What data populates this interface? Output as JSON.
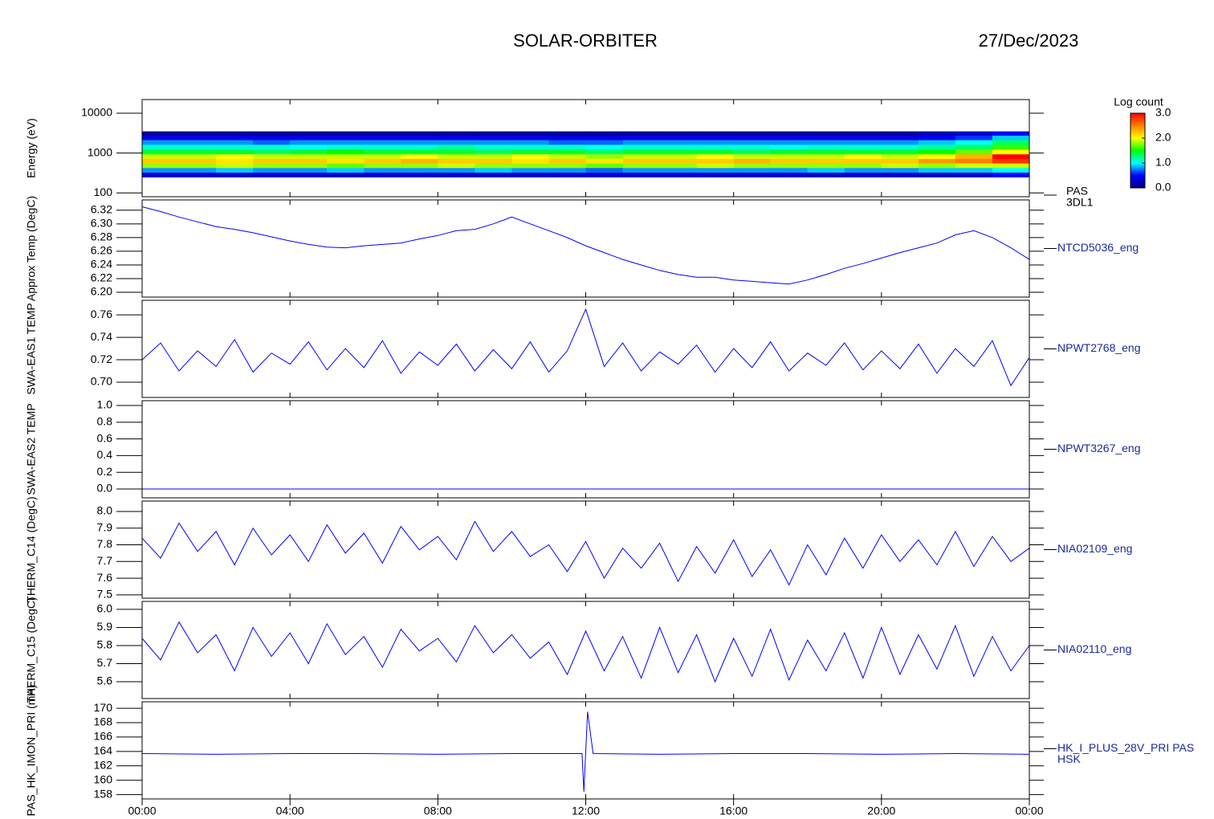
{
  "title": "SOLAR-ORBITER",
  "date": "27/Dec/2023",
  "chart_data": [
    {
      "type": "heatmap",
      "labels": [
        "PAS",
        "3DL1"
      ],
      "ylabel": "Energy (eV)",
      "ylog": true,
      "xlim": [
        0,
        24
      ],
      "ylim": [
        80,
        22000
      ],
      "yticks": [
        100,
        1000,
        10000
      ],
      "x_edges": [
        0,
        1,
        2,
        3,
        4,
        5,
        6,
        7,
        8,
        9,
        10,
        11,
        12,
        13,
        14,
        15,
        16,
        17,
        18,
        19,
        20,
        21,
        22,
        23,
        24
      ],
      "y_edges": [
        250,
        330,
        430,
        560,
        730,
        950,
        1250,
        1650,
        2150,
        2800,
        3500
      ],
      "z": [
        [
          0.3,
          0.3,
          0.3,
          0.3,
          0.3,
          0.3,
          0.3,
          0.3,
          0.3,
          0.3,
          0.3,
          0.3,
          0.3,
          0.3,
          0.3,
          0.3,
          0.3,
          0.3,
          0.3,
          0.3,
          0.3,
          0.3,
          0.3,
          0.5
        ],
        [
          0.8,
          0.8,
          0.9,
          0.8,
          0.8,
          0.9,
          0.8,
          0.8,
          0.8,
          0.9,
          0.8,
          0.8,
          0.7,
          0.8,
          0.8,
          0.8,
          0.8,
          0.8,
          0.9,
          0.8,
          0.8,
          0.9,
          0.9,
          1.0
        ],
        [
          1.8,
          1.8,
          1.9,
          1.8,
          1.8,
          1.7,
          1.8,
          1.8,
          1.9,
          1.8,
          1.8,
          1.8,
          1.7,
          1.8,
          1.8,
          1.9,
          1.8,
          1.8,
          1.8,
          1.8,
          1.9,
          1.8,
          1.9,
          1.9
        ],
        [
          2.2,
          2.2,
          2.1,
          2.2,
          2.2,
          2.1,
          2.2,
          2.3,
          2.2,
          2.2,
          2.1,
          2.2,
          2.1,
          2.2,
          2.2,
          2.2,
          2.3,
          2.2,
          2.2,
          2.2,
          2.2,
          2.4,
          2.5,
          2.8
        ],
        [
          1.9,
          1.9,
          2.0,
          1.9,
          1.9,
          1.9,
          1.9,
          2.0,
          1.9,
          1.9,
          2.0,
          1.9,
          1.8,
          1.9,
          1.9,
          2.0,
          1.9,
          1.9,
          1.9,
          2.0,
          1.9,
          2.0,
          2.3,
          3.0
        ],
        [
          1.4,
          1.4,
          1.4,
          1.3,
          1.4,
          1.5,
          1.4,
          1.4,
          1.4,
          1.3,
          1.4,
          1.4,
          1.3,
          1.4,
          1.4,
          1.4,
          1.3,
          1.4,
          1.4,
          1.4,
          1.4,
          1.5,
          1.7,
          2.0
        ],
        [
          1.1,
          1.1,
          1.1,
          1.1,
          1.0,
          1.1,
          1.1,
          1.1,
          1.2,
          1.1,
          1.1,
          1.1,
          1.0,
          1.1,
          1.1,
          1.1,
          1.1,
          1.0,
          1.1,
          1.1,
          1.1,
          1.2,
          1.3,
          1.6
        ],
        [
          0.8,
          0.8,
          0.8,
          0.7,
          0.8,
          0.8,
          0.8,
          0.8,
          0.8,
          0.8,
          0.8,
          0.7,
          0.7,
          0.8,
          0.8,
          0.8,
          0.8,
          0.8,
          0.8,
          0.8,
          0.8,
          0.9,
          1.0,
          1.3
        ],
        [
          0.4,
          0.4,
          0.4,
          0.4,
          0.4,
          0.4,
          0.4,
          0.4,
          0.4,
          0.4,
          0.4,
          0.4,
          0.4,
          0.4,
          0.4,
          0.4,
          0.4,
          0.4,
          0.4,
          0.4,
          0.4,
          0.5,
          0.6,
          0.9
        ],
        [
          0.1,
          0.1,
          0.1,
          0.1,
          0.1,
          0.1,
          0.1,
          0.1,
          0.1,
          0.1,
          0.1,
          0.1,
          0.1,
          0.1,
          0.1,
          0.1,
          0.1,
          0.1,
          0.1,
          0.1,
          0.1,
          0.2,
          0.3,
          0.5
        ]
      ],
      "colorscale": [
        "#000080",
        "#0000ff",
        "#00ffff",
        "#00ff00",
        "#ffff00",
        "#ff8000",
        "#ff0000"
      ],
      "zlabel": "Log count",
      "zlim": [
        0,
        3
      ],
      "zticks": [
        {
          "value": 0,
          "label": "0.0"
        },
        {
          "value": 1,
          "label": "1.0"
        },
        {
          "value": 2,
          "label": "2.0"
        },
        {
          "value": 3,
          "label": "3.0"
        }
      ]
    },
    {
      "type": "line",
      "labels": [
        "NTCD5036_eng"
      ],
      "ylabel": "Approx Temp (DegC)",
      "color": "#0000ff",
      "xlim": [
        0,
        24
      ],
      "ylim": [
        6.193,
        6.335
      ],
      "yticks": [
        {
          "value": 6.2,
          "label": "6.20"
        },
        {
          "value": 6.22,
          "label": "6.22"
        },
        {
          "value": 6.24,
          "label": "6.24"
        },
        {
          "value": 6.26,
          "label": "6.26"
        },
        {
          "value": 6.28,
          "label": "6.28"
        },
        {
          "value": 6.3,
          "label": "6.30"
        },
        {
          "value": 6.32,
          "label": "6.32"
        }
      ],
      "x": [
        0,
        0.5,
        1,
        1.5,
        2,
        2.5,
        3,
        3.5,
        4,
        4.5,
        5,
        5.5,
        6,
        6.5,
        7,
        7.5,
        8,
        8.5,
        9,
        9.5,
        10,
        10.5,
        11,
        11.5,
        12,
        12.5,
        13,
        13.5,
        14,
        14.5,
        15,
        15.5,
        16,
        16.5,
        17,
        17.5,
        18,
        18.5,
        19,
        19.5,
        20,
        20.5,
        21,
        21.5,
        22,
        22.5,
        23,
        23.5,
        24
      ],
      "values": [
        6.325,
        6.318,
        6.31,
        6.303,
        6.296,
        6.292,
        6.287,
        6.281,
        6.275,
        6.27,
        6.266,
        6.265,
        6.268,
        6.27,
        6.272,
        6.278,
        6.283,
        6.29,
        6.292,
        6.3,
        6.31,
        6.3,
        6.29,
        6.28,
        6.268,
        6.258,
        6.248,
        6.24,
        6.232,
        6.226,
        6.222,
        6.222,
        6.218,
        6.216,
        6.214,
        6.212,
        6.218,
        6.226,
        6.235,
        6.242,
        6.25,
        6.258,
        6.265,
        6.272,
        6.284,
        6.29,
        6.28,
        6.265,
        6.248
      ]
    },
    {
      "type": "line",
      "labels": [
        "NPWT2768_eng"
      ],
      "ylabel": "SWA-EAS1 TEMP",
      "color": "#0000ff",
      "xlim": [
        0,
        24
      ],
      "ylim": [
        0.6864,
        0.773
      ],
      "yticks": [
        {
          "value": 0.7,
          "label": "0.70"
        },
        {
          "value": 0.72,
          "label": "0.72"
        },
        {
          "value": 0.74,
          "label": "0.74"
        },
        {
          "value": 0.76,
          "label": "0.76"
        }
      ],
      "x": [
        0,
        0.5,
        1,
        1.5,
        2,
        2.5,
        3,
        3.5,
        4,
        4.5,
        5,
        5.5,
        6,
        6.5,
        7,
        7.5,
        8,
        8.5,
        9,
        9.5,
        10,
        10.5,
        11,
        11.5,
        12,
        12.5,
        13,
        13.5,
        14,
        14.5,
        15,
        15.5,
        16,
        16.5,
        17,
        17.5,
        18,
        18.5,
        19,
        19.5,
        20,
        20.5,
        21,
        21.5,
        22,
        22.5,
        23,
        23.5,
        24
      ],
      "values": [
        0.72,
        0.735,
        0.71,
        0.728,
        0.714,
        0.738,
        0.709,
        0.726,
        0.716,
        0.736,
        0.711,
        0.73,
        0.713,
        0.737,
        0.708,
        0.727,
        0.715,
        0.734,
        0.71,
        0.729,
        0.712,
        0.736,
        0.709,
        0.728,
        0.765,
        0.714,
        0.735,
        0.71,
        0.727,
        0.716,
        0.733,
        0.709,
        0.73,
        0.713,
        0.736,
        0.71,
        0.726,
        0.715,
        0.735,
        0.711,
        0.728,
        0.712,
        0.734,
        0.708,
        0.73,
        0.714,
        0.737,
        0.697,
        0.722
      ]
    },
    {
      "type": "line",
      "labels": [
        "NPWT3267_eng"
      ],
      "ylabel": "SWA-EAS2 TEMP",
      "color": "#0000ff",
      "xlim": [
        0,
        24
      ],
      "ylim": [
        -0.106,
        1.058
      ],
      "yticks": [
        {
          "value": 0,
          "label": "0.0"
        },
        0.2,
        0.4,
        0.6,
        0.8,
        {
          "value": 1,
          "label": "1.0"
        }
      ],
      "x": [
        0,
        24
      ],
      "values": [
        0,
        0
      ]
    },
    {
      "type": "line",
      "labels": [
        "NIA02109_eng"
      ],
      "ylabel": "THERM_C14 (DegC)",
      "color": "#0000ff",
      "xlim": [
        0,
        24
      ],
      "ylim": [
        7.48,
        8.0625
      ],
      "yticks": [
        7.5,
        7.6,
        7.7,
        7.8,
        7.9,
        {
          "value": 8,
          "label": "8.0"
        }
      ],
      "x": [
        0,
        0.5,
        1,
        1.5,
        2,
        2.5,
        3,
        3.5,
        4,
        4.5,
        5,
        5.5,
        6,
        6.5,
        7,
        7.5,
        8,
        8.5,
        9,
        9.5,
        10,
        10.5,
        11,
        11.5,
        12,
        12.5,
        13,
        13.5,
        14,
        14.5,
        15,
        15.5,
        16,
        16.5,
        17,
        17.5,
        18,
        18.5,
        19,
        19.5,
        20,
        20.5,
        21,
        21.5,
        22,
        22.5,
        23,
        23.5,
        24
      ],
      "values": [
        7.84,
        7.72,
        7.93,
        7.76,
        7.88,
        7.68,
        7.9,
        7.74,
        7.86,
        7.7,
        7.92,
        7.75,
        7.87,
        7.69,
        7.91,
        7.77,
        7.85,
        7.71,
        7.94,
        7.76,
        7.88,
        7.73,
        7.8,
        7.64,
        7.82,
        7.6,
        7.78,
        7.66,
        7.81,
        7.58,
        7.79,
        7.63,
        7.83,
        7.61,
        7.77,
        7.56,
        7.8,
        7.62,
        7.84,
        7.66,
        7.86,
        7.7,
        7.83,
        7.68,
        7.88,
        7.67,
        7.85,
        7.7,
        7.78
      ]
    },
    {
      "type": "line",
      "labels": [
        "NIA02110_eng"
      ],
      "ylabel": "THERM_C15 (DegC)",
      "color": "#0000ff",
      "xlim": [
        0,
        24
      ],
      "ylim": [
        5.507,
        6.044
      ],
      "yticks": [
        5.6,
        5.7,
        5.8,
        5.9,
        {
          "value": 6,
          "label": "6.0"
        }
      ],
      "x": [
        0,
        0.5,
        1,
        1.5,
        2,
        2.5,
        3,
        3.5,
        4,
        4.5,
        5,
        5.5,
        6,
        6.5,
        7,
        7.5,
        8,
        8.5,
        9,
        9.5,
        10,
        10.5,
        11,
        11.5,
        12,
        12.5,
        13,
        13.5,
        14,
        14.5,
        15,
        15.5,
        16,
        16.5,
        17,
        17.5,
        18,
        18.5,
        19,
        19.5,
        20,
        20.5,
        21,
        21.5,
        22,
        22.5,
        23,
        23.5,
        24
      ],
      "values": [
        5.84,
        5.72,
        5.93,
        5.76,
        5.86,
        5.66,
        5.9,
        5.74,
        5.87,
        5.7,
        5.92,
        5.75,
        5.85,
        5.68,
        5.89,
        5.77,
        5.84,
        5.71,
        5.91,
        5.76,
        5.86,
        5.73,
        5.82,
        5.64,
        5.88,
        5.66,
        5.85,
        5.62,
        5.9,
        5.65,
        5.86,
        5.6,
        5.84,
        5.63,
        5.89,
        5.61,
        5.83,
        5.66,
        5.87,
        5.62,
        5.9,
        5.64,
        5.86,
        5.67,
        5.91,
        5.63,
        5.85,
        5.66,
        5.8
      ]
    },
    {
      "type": "line",
      "labels": [
        "HK_I_PLUS_28V_PRI PAS",
        "HSK"
      ],
      "ylabel": "PAS_HK_IMON_PRI (mA)",
      "color": "#0000ff",
      "xlim": [
        0,
        24
      ],
      "ylim": [
        157.4,
        170.9
      ],
      "yticks": [
        158,
        160,
        162,
        164,
        166,
        168,
        170
      ],
      "xticks": [
        {
          "value": 0,
          "label": "00:00"
        },
        {
          "value": 4,
          "label": "04:00"
        },
        {
          "value": 8,
          "label": "08:00"
        },
        {
          "value": 12,
          "label": "12:00"
        },
        {
          "value": 16,
          "label": "16:00"
        },
        {
          "value": 20,
          "label": "20:00"
        },
        {
          "value": 24,
          "label": "00:00"
        }
      ],
      "x": [
        0,
        2,
        4,
        6,
        8,
        10,
        11.9,
        11.95,
        12.05,
        12.2,
        14,
        16,
        18,
        20,
        22,
        24
      ],
      "values": [
        163.7,
        163.6,
        163.7,
        163.7,
        163.6,
        163.7,
        163.7,
        158.4,
        169.5,
        163.7,
        163.6,
        163.7,
        163.7,
        163.6,
        163.7,
        163.6
      ]
    }
  ]
}
